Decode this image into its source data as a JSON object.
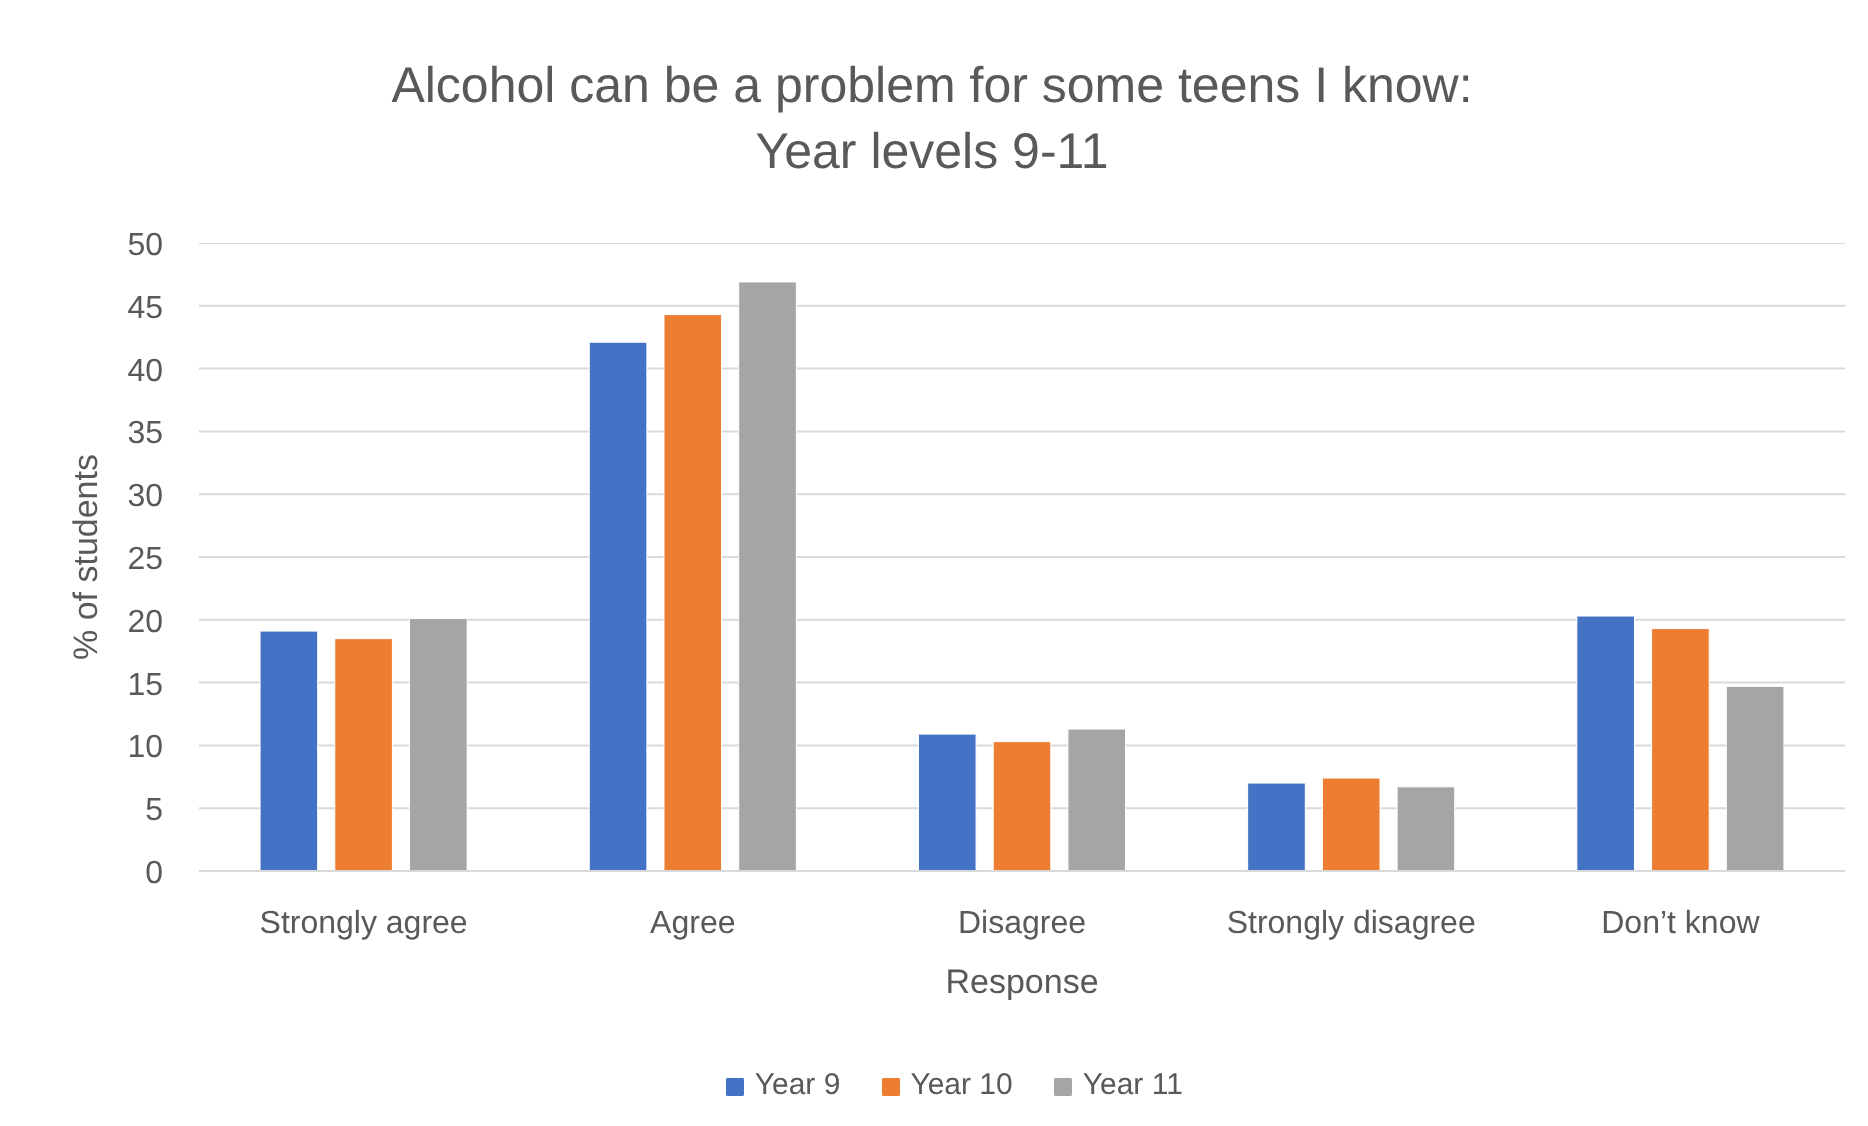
{
  "chart_data": {
    "type": "bar",
    "title": "Alcohol can be a problem for some teens I know:\nYear levels 9-11",
    "xlabel": "Response",
    "ylabel": "% of students",
    "categories": [
      "Strongly agree",
      "Agree",
      "Disagree",
      "Strongly disagree",
      "Don’t know"
    ],
    "series": [
      {
        "name": "Year 9",
        "color": "#4472c4",
        "values": [
          19.1,
          42.1,
          10.9,
          7.0,
          20.3
        ]
      },
      {
        "name": "Year 10",
        "color": "#ed7d31",
        "values": [
          18.5,
          44.3,
          10.3,
          7.4,
          19.3
        ]
      },
      {
        "name": "Year 11",
        "color": "#a5a5a5",
        "values": [
          20.1,
          46.9,
          11.3,
          6.7,
          14.7
        ]
      }
    ],
    "ylim": [
      0,
      50
    ],
    "yticks": [
      0,
      5,
      10,
      15,
      20,
      25,
      30,
      35,
      40,
      45,
      50
    ],
    "grid": "y",
    "legend": "bottom"
  }
}
